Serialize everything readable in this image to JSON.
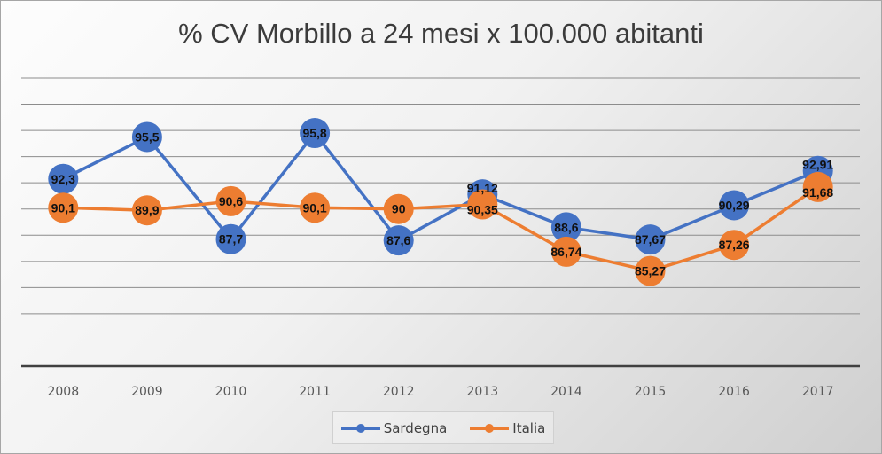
{
  "chart_data": {
    "type": "line",
    "title": "% CV Morbillo a 24 mesi x 100.000 abitanti",
    "categories": [
      "2008",
      "2009",
      "2010",
      "2011",
      "2012",
      "2013",
      "2014",
      "2015",
      "2016",
      "2017"
    ],
    "series": [
      {
        "name": "Sardegna",
        "color": "#4472c4",
        "values": [
          92.3,
          95.5,
          87.7,
          95.8,
          87.6,
          91.12,
          88.6,
          87.67,
          90.29,
          92.91
        ],
        "labels": [
          "92,3",
          "95,5",
          "87,7",
          "95,8",
          "87,6",
          "91,12",
          "88,6",
          "87,67",
          "90,29",
          "92,91"
        ]
      },
      {
        "name": "Italia",
        "color": "#ed7d31",
        "values": [
          90.1,
          89.9,
          90.6,
          90.1,
          90,
          90.35,
          86.74,
          85.27,
          87.26,
          91.68
        ],
        "labels": [
          "90,1",
          "89,9",
          "90,6",
          "90,1",
          "90",
          "90,35",
          "86,74",
          "85,27",
          "87,26",
          "91,68"
        ]
      }
    ],
    "ylim": [
      78,
      100
    ],
    "y_gridline_step": 2,
    "y_tick_labels_visible": false,
    "grid": true,
    "legend": "bottom"
  }
}
